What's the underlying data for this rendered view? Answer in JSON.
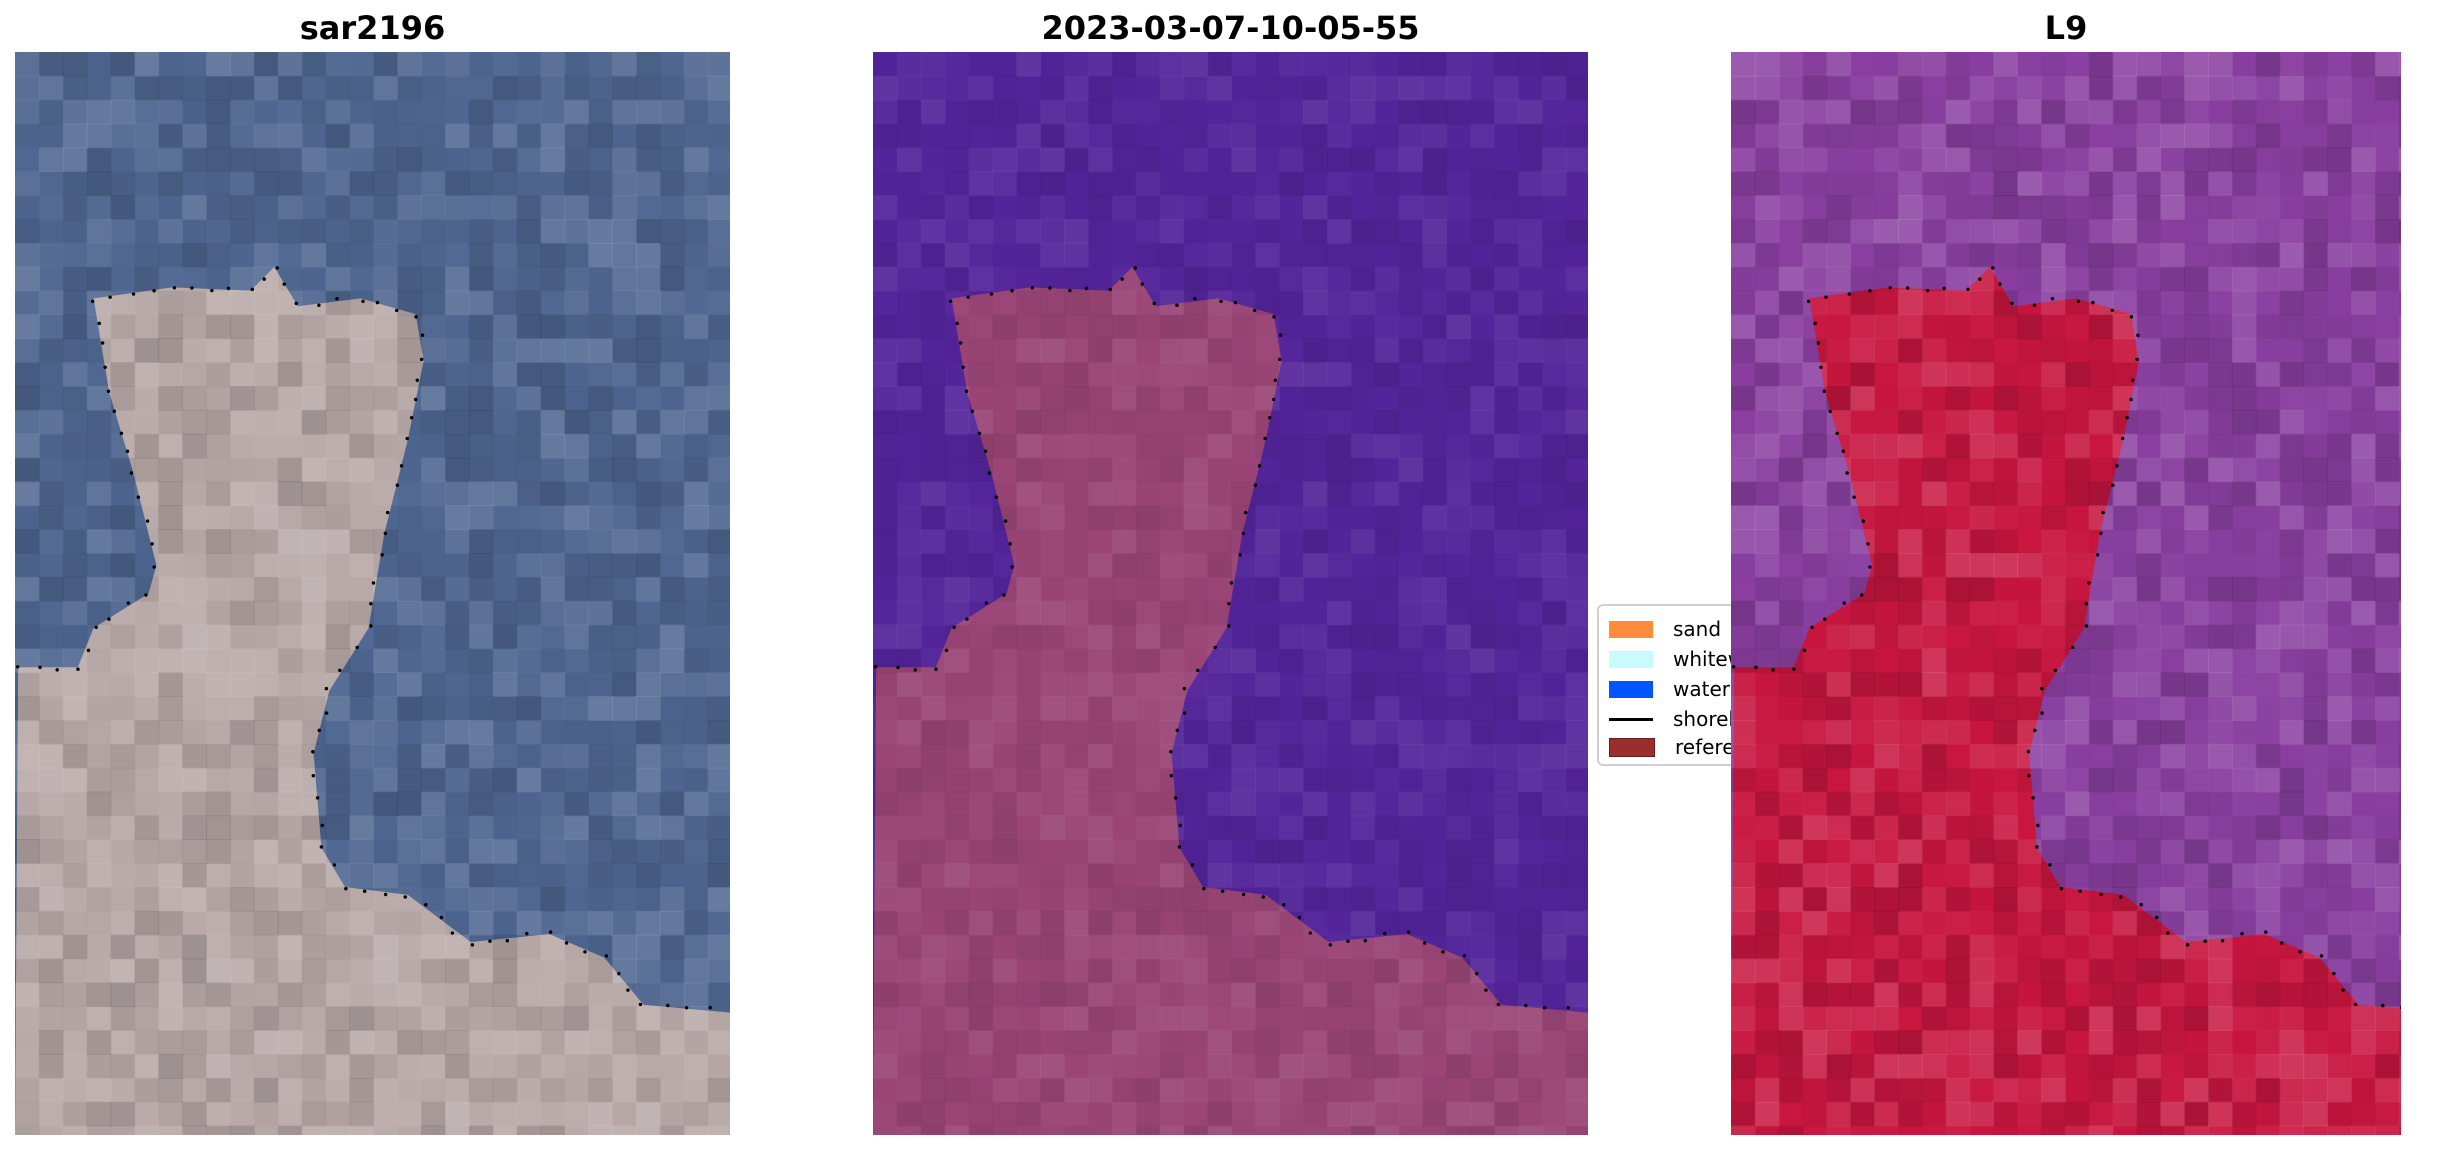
{
  "panels": [
    {
      "title": "sar2196",
      "kind": "rgb"
    },
    {
      "title": "2023-03-07-10-05-55",
      "kind": "classification"
    },
    {
      "title": "L9",
      "kind": "index"
    }
  ],
  "legend": {
    "items": [
      {
        "label": "sand",
        "color": "#ff8c3c",
        "type": "patch"
      },
      {
        "label": "whitew",
        "color": "#c8fcfc",
        "type": "patch"
      },
      {
        "label": "water",
        "color": "#0055ff",
        "type": "patch"
      },
      {
        "label": "shorel",
        "color": "#000000",
        "type": "line"
      },
      {
        "label": "referen",
        "color": "#9b2d2d",
        "type": "patch"
      }
    ]
  },
  "colors": {
    "rgb_water": "#4e6690",
    "rgb_land": "#b8a9a8",
    "class_water": "#53249a",
    "class_land": "#9a4576",
    "index_water": "#8a3fa0",
    "index_land": "#c8163f"
  }
}
